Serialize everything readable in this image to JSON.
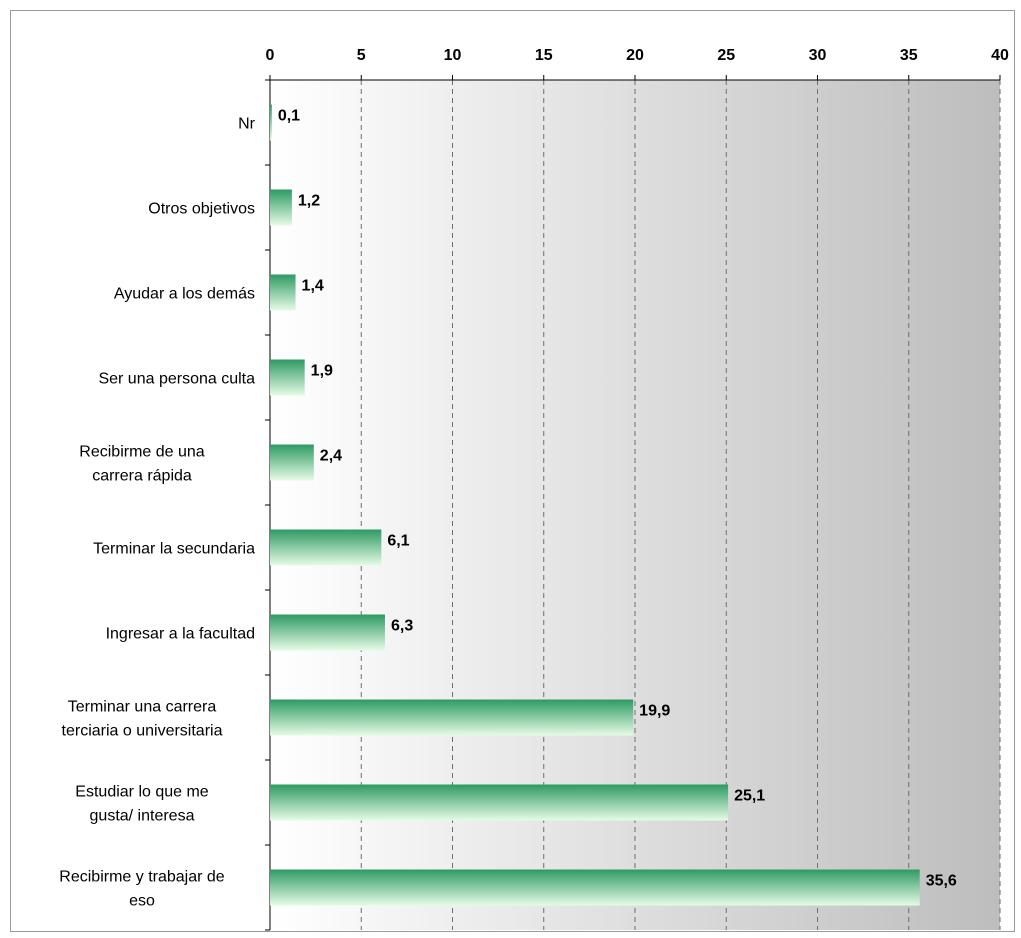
{
  "chart_data": {
    "type": "bar",
    "orientation": "horizontal",
    "categories": [
      "Nr",
      "Otros objetivos",
      "Ayudar a los demás",
      "Ser una persona culta",
      "Recibirme de una carrera rápida",
      "Terminar la secundaria",
      "Ingresar a la facultad",
      "Terminar una carrera terciaria o universitaria",
      "Estudiar lo que me gusta/ interesa",
      "Recibirme y trabajar de eso"
    ],
    "category_lines": [
      [
        "Nr"
      ],
      [
        "Otros objetivos"
      ],
      [
        "Ayudar a los demás"
      ],
      [
        "Ser una persona culta"
      ],
      [
        "Recibirme de una",
        "carrera rápida"
      ],
      [
        "Terminar la secundaria"
      ],
      [
        "Ingresar a la facultad"
      ],
      [
        "Terminar una carrera",
        "terciaria o universitaria"
      ],
      [
        "Estudiar lo que me",
        "gusta/ interesa"
      ],
      [
        "Recibirme y trabajar de",
        "eso"
      ]
    ],
    "values": [
      0.1,
      1.2,
      1.4,
      1.9,
      2.4,
      6.1,
      6.3,
      19.9,
      25.1,
      35.6
    ],
    "data_labels": [
      "0,1",
      "1,2",
      "1,4",
      "1,9",
      "2,4",
      "6,1",
      "6,3",
      "19,9",
      "25,1",
      "35,6"
    ],
    "xlim": [
      0,
      40
    ],
    "xticks": [
      0,
      5,
      10,
      15,
      20,
      25,
      30,
      35,
      40
    ],
    "xtick_labels": [
      "0",
      "5",
      "10",
      "15",
      "20",
      "25",
      "30",
      "35",
      "40"
    ],
    "axis_position": "top",
    "grid": "vertical dashed",
    "title": "",
    "xlabel": "",
    "ylabel": "",
    "colors": {
      "bar_top": "#2e9a63",
      "bar_bottom": "#e6fce6",
      "plot_bg_left": "#ffffff",
      "plot_bg_right": "#bdbdbd",
      "grid": "#6e6e6e"
    }
  }
}
